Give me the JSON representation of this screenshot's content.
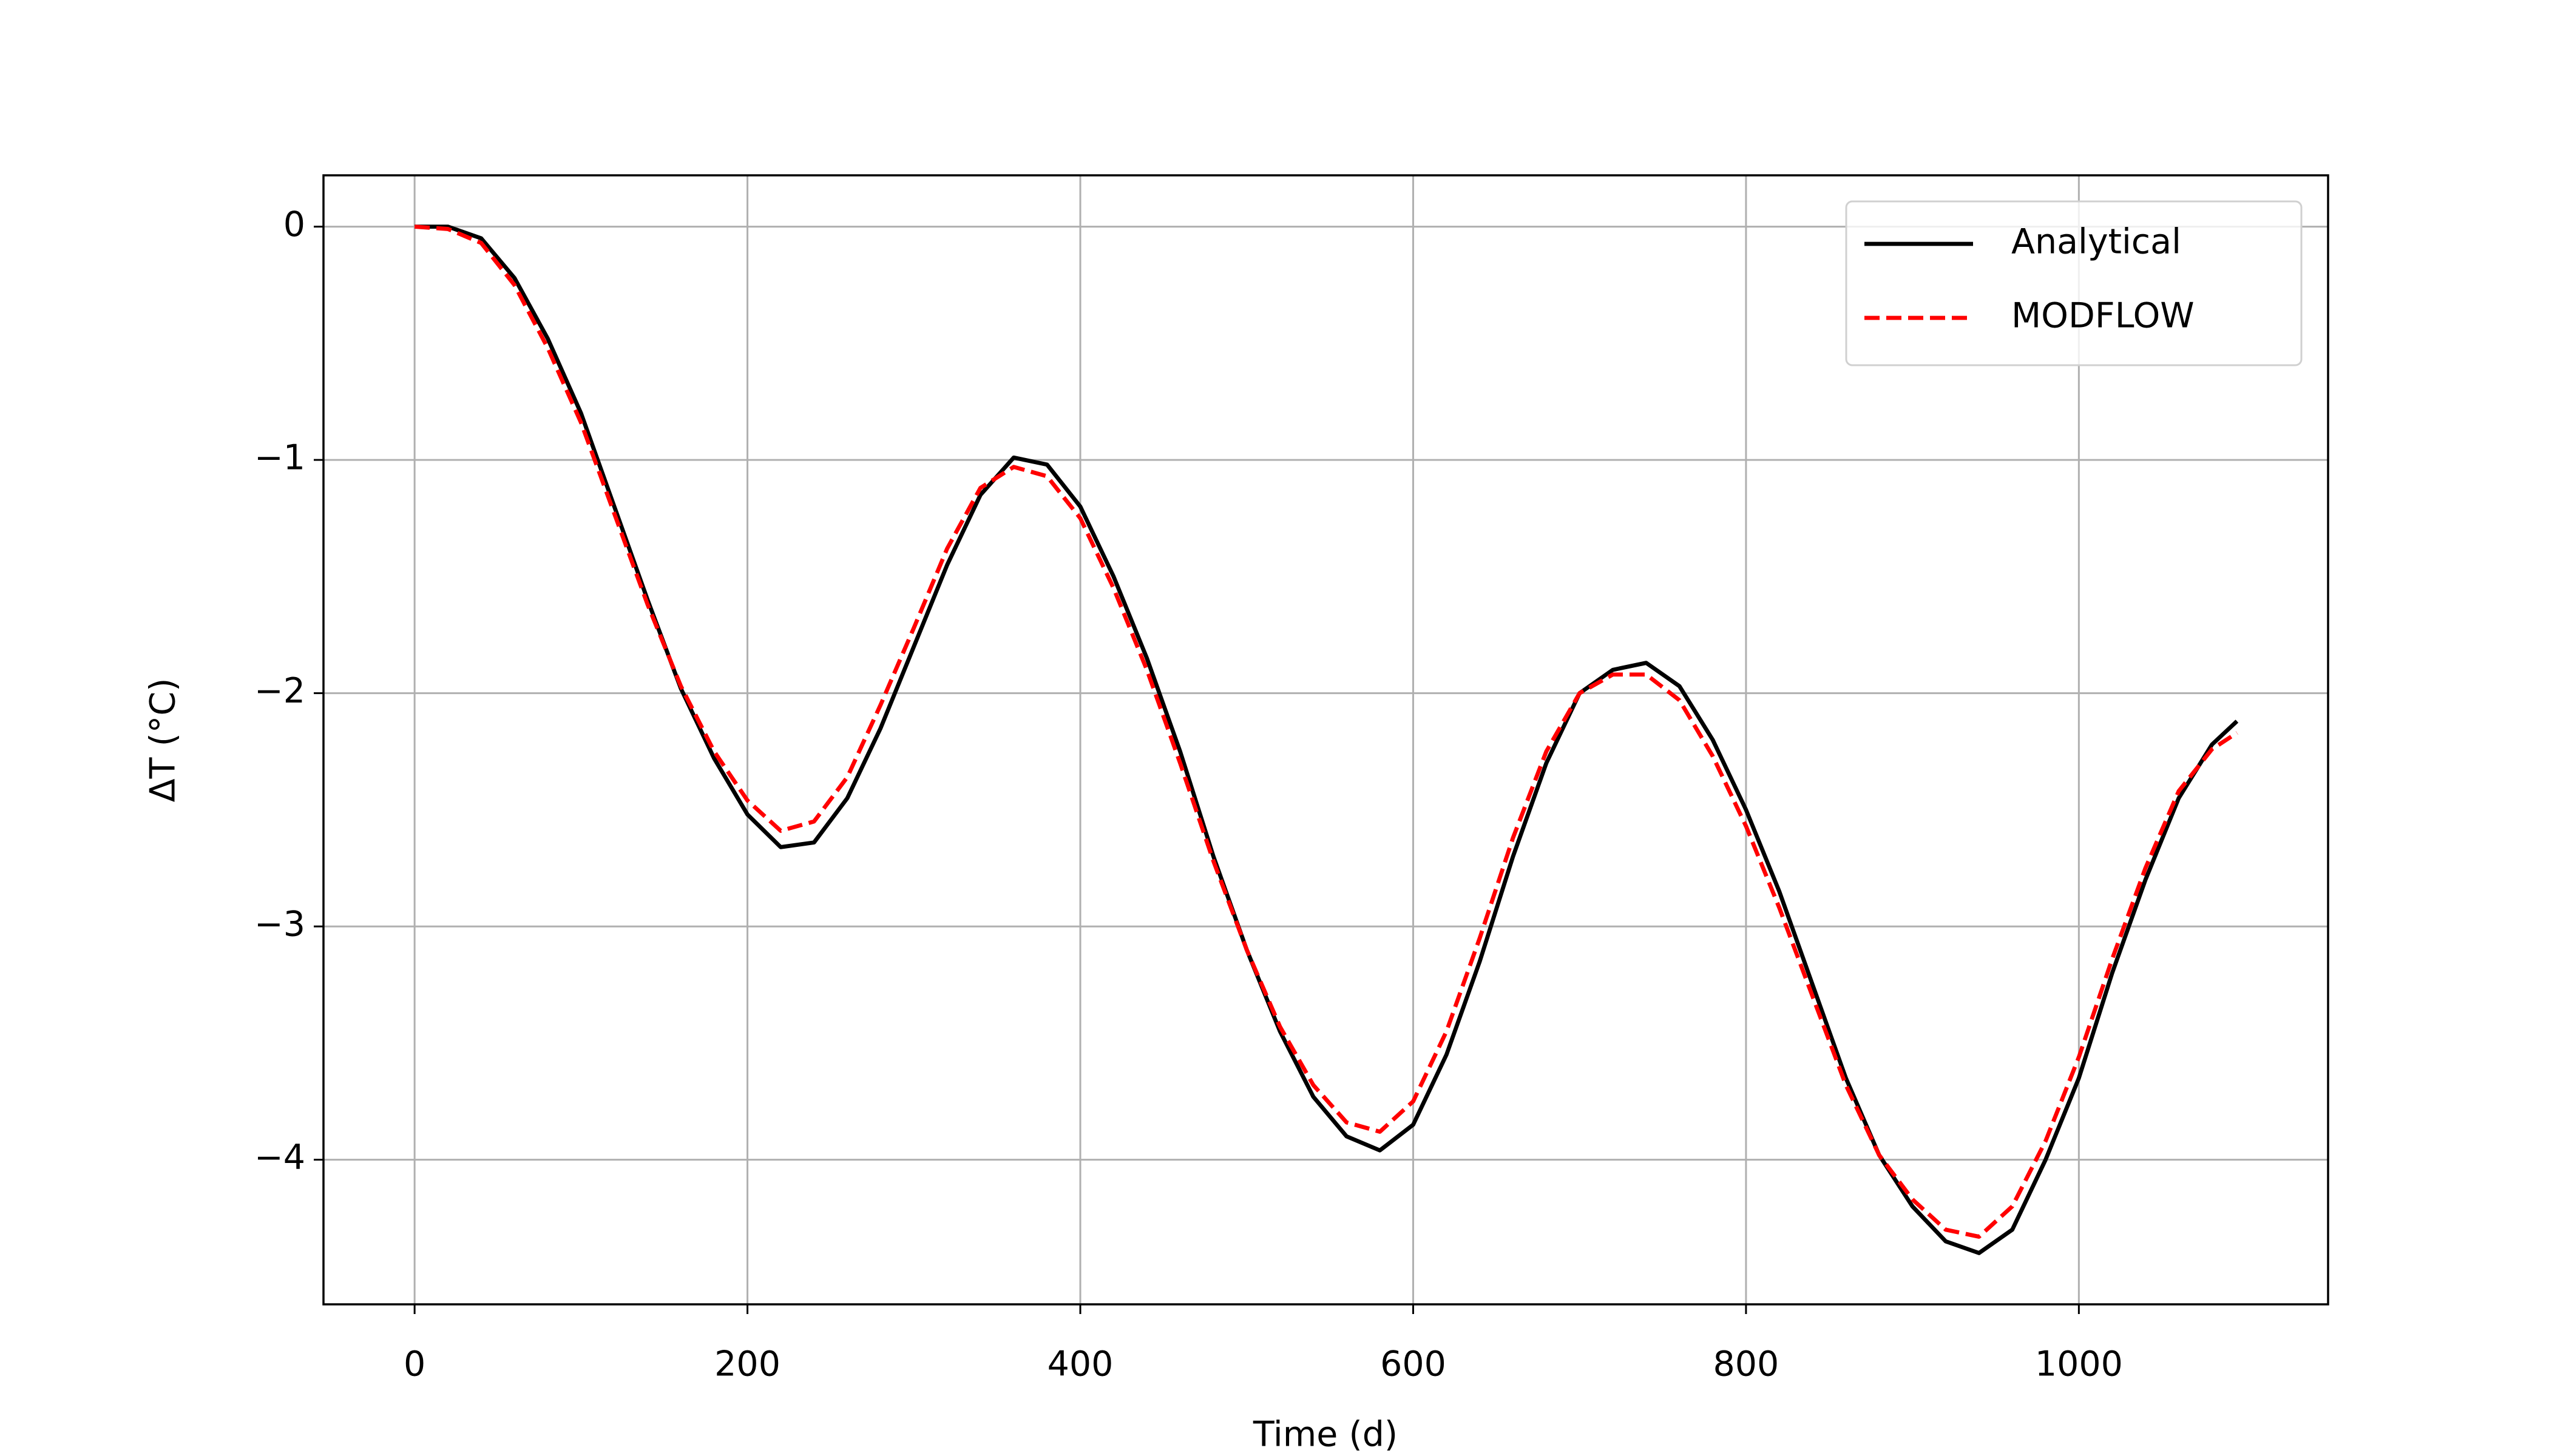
{
  "chart_data": {
    "type": "line",
    "xlabel": "Time (d)",
    "ylabel": "ΔT (°C)",
    "x": [
      0,
      20,
      40,
      60,
      80,
      100,
      120,
      140,
      160,
      180,
      200,
      220,
      240,
      260,
      280,
      300,
      320,
      340,
      360,
      380,
      400,
      420,
      440,
      460,
      480,
      500,
      520,
      540,
      560,
      580,
      600,
      620,
      640,
      660,
      680,
      700,
      720,
      740,
      760,
      780,
      800,
      820,
      840,
      860,
      880,
      900,
      920,
      940,
      960,
      980,
      1000,
      1020,
      1040,
      1060,
      1080,
      1095
    ],
    "series": [
      {
        "name": "Analytical",
        "color": "#000000",
        "dash": false,
        "values": [
          0,
          0,
          -0.05,
          -0.22,
          -0.48,
          -0.8,
          -1.2,
          -1.6,
          -1.98,
          -2.28,
          -2.52,
          -2.66,
          -2.64,
          -2.45,
          -2.15,
          -1.8,
          -1.45,
          -1.15,
          -0.99,
          -1.02,
          -1.2,
          -1.5,
          -1.85,
          -2.25,
          -2.7,
          -3.1,
          -3.45,
          -3.73,
          -3.9,
          -3.96,
          -3.85,
          -3.55,
          -3.15,
          -2.7,
          -2.3,
          -2.0,
          -1.9,
          -1.87,
          -1.97,
          -2.2,
          -2.5,
          -2.85,
          -3.25,
          -3.65,
          -3.98,
          -4.2,
          -4.35,
          -4.4,
          -4.3,
          -4.0,
          -3.65,
          -3.2,
          -2.8,
          -2.45,
          -2.22,
          -2.12
        ]
      },
      {
        "name": "MODFLOW",
        "color": "#ff0000",
        "dash": true,
        "values": [
          0,
          -0.01,
          -0.07,
          -0.25,
          -0.52,
          -0.84,
          -1.23,
          -1.62,
          -1.97,
          -2.25,
          -2.46,
          -2.59,
          -2.55,
          -2.36,
          -2.05,
          -1.72,
          -1.38,
          -1.12,
          -1.03,
          -1.07,
          -1.25,
          -1.55,
          -1.9,
          -2.3,
          -2.72,
          -3.1,
          -3.43,
          -3.68,
          -3.84,
          -3.88,
          -3.75,
          -3.45,
          -3.05,
          -2.62,
          -2.25,
          -2.0,
          -1.92,
          -1.92,
          -2.03,
          -2.27,
          -2.57,
          -2.92,
          -3.3,
          -3.68,
          -3.98,
          -4.17,
          -4.3,
          -4.33,
          -4.2,
          -3.92,
          -3.56,
          -3.14,
          -2.75,
          -2.42,
          -2.24,
          -2.17
        ]
      }
    ],
    "xlim": [
      -54.75,
      1149.75
    ],
    "xticks": [
      0,
      200,
      400,
      600,
      800,
      1000
    ],
    "ylim": [
      -4.62,
      0.22
    ],
    "yticks": [
      {
        "value": -4,
        "label": "−4"
      },
      {
        "value": -3,
        "label": "−3"
      },
      {
        "value": -2,
        "label": "−2"
      },
      {
        "value": -1,
        "label": "−1"
      },
      0
    ],
    "grid": true,
    "legend": "upper right"
  }
}
